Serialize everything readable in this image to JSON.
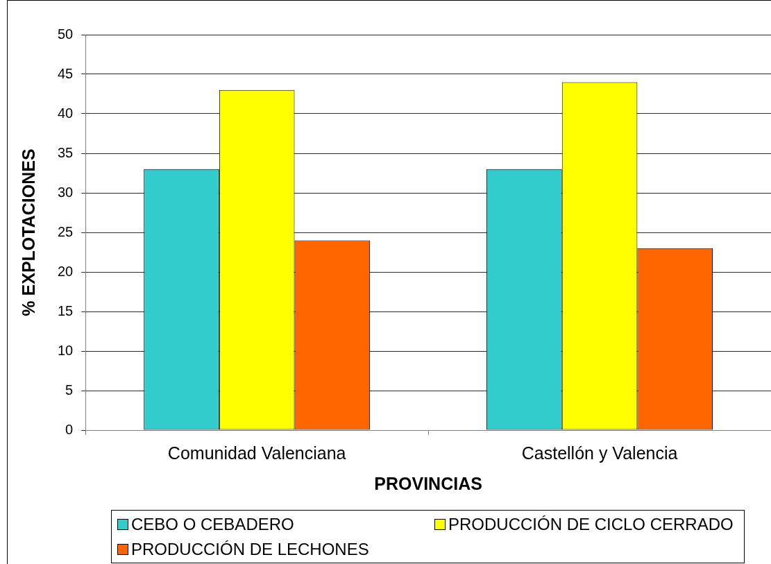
{
  "chart_data": {
    "type": "bar",
    "categories": [
      "Comunidad Valenciana",
      "Castellón y Valencia"
    ],
    "series": [
      {
        "name": "CEBO O CEBADERO",
        "color": "#33cccc",
        "values": [
          33,
          33
        ]
      },
      {
        "name": "PRODUCCIÓN DE CICLO CERRADO",
        "color": "#ffff00",
        "values": [
          43,
          44
        ]
      },
      {
        "name": "PRODUCCIÓN DE LECHONES",
        "color": "#ff6600",
        "values": [
          24,
          23
        ]
      }
    ],
    "xlabel": "PROVINCIAS",
    "ylabel": "% EXPLOTACIONES",
    "ylim": [
      0,
      50
    ],
    "yticks": [
      0,
      5,
      10,
      15,
      20,
      25,
      30,
      35,
      40,
      45,
      50
    ],
    "grid": "y",
    "legend": "bottom"
  }
}
